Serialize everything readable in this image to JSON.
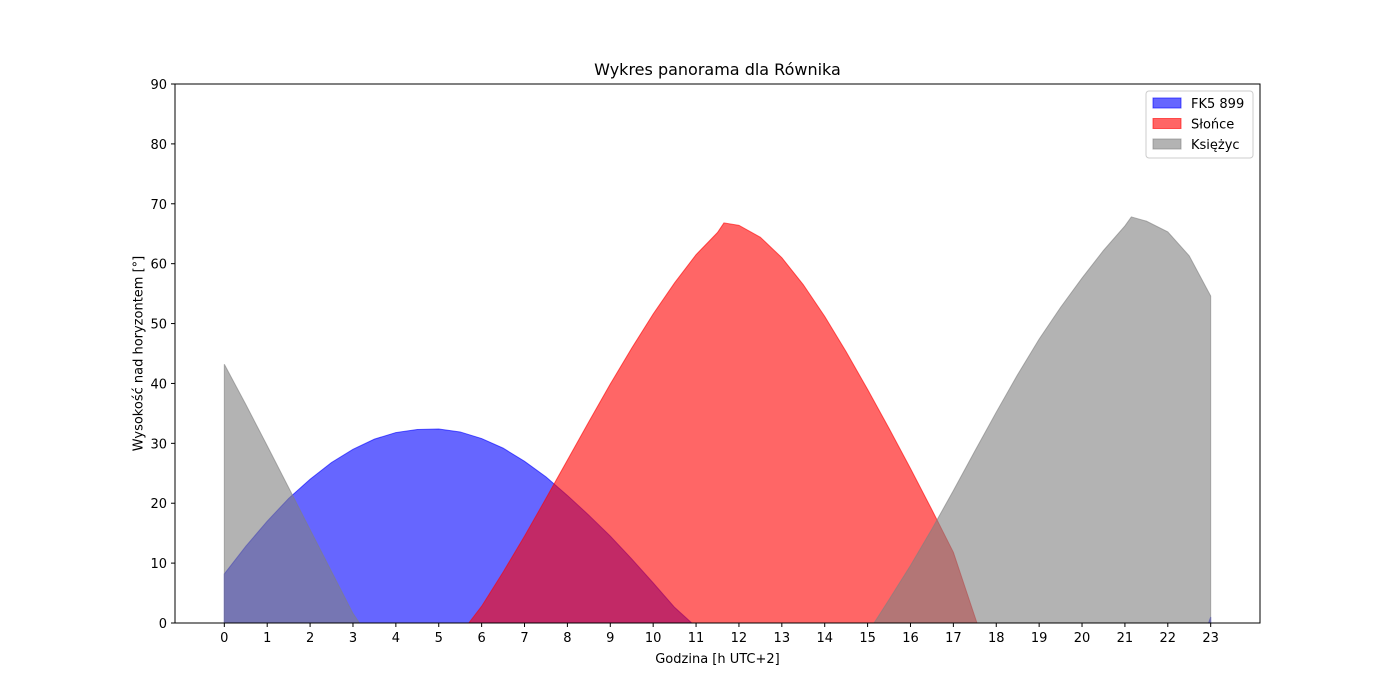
{
  "chart_data": {
    "type": "area",
    "title": "Wykres panorama dla Równika",
    "xlabel": "Godzina [h UTC+2]",
    "ylabel": "Wysokość nad horyzontem [°]",
    "xlim": [
      -1.15,
      24.15
    ],
    "ylim": [
      0,
      90
    ],
    "xticks": [
      0,
      1,
      2,
      3,
      4,
      5,
      6,
      7,
      8,
      9,
      10,
      11,
      12,
      13,
      14,
      15,
      16,
      17,
      18,
      19,
      20,
      21,
      22,
      23
    ],
    "yticks": [
      0,
      10,
      20,
      30,
      40,
      50,
      60,
      70,
      80,
      90
    ],
    "grid": false,
    "legend_position": "top-right",
    "series": [
      {
        "name": "FK5 899",
        "color": "#0000ff",
        "x": [
          0,
          0.5,
          1,
          1.5,
          2,
          2.5,
          3,
          3.5,
          4,
          4.5,
          5,
          5.5,
          6,
          6.5,
          7,
          7.5,
          8,
          8.5,
          9,
          9.5,
          10,
          10.5,
          10.9,
          22.95,
          23
        ],
        "y": [
          8.2,
          12.8,
          17.0,
          20.8,
          24.0,
          26.8,
          29.0,
          30.7,
          31.8,
          32.3,
          32.4,
          31.9,
          30.8,
          29.2,
          27.0,
          24.4,
          21.3,
          18.0,
          14.5,
          10.7,
          6.7,
          2.6,
          0,
          0,
          1.0
        ]
      },
      {
        "name": "Słońce",
        "color": "#ff0000",
        "x": [
          5.7,
          6,
          6.5,
          7,
          7.5,
          8,
          8.5,
          9,
          9.5,
          10,
          10.5,
          11,
          11.5,
          11.65,
          12,
          12.5,
          13,
          13.5,
          14,
          14.5,
          15,
          15.5,
          16,
          16.5,
          17,
          17.55
        ],
        "y": [
          0,
          2.8,
          8.5,
          14.5,
          20.8,
          27.2,
          33.6,
          39.9,
          45.9,
          51.6,
          56.8,
          61.5,
          65.2,
          66.8,
          66.4,
          64.4,
          61.0,
          56.5,
          51.2,
          45.3,
          39.0,
          32.5,
          25.8,
          18.9,
          11.8,
          0
        ]
      },
      {
        "name": "Księżyc",
        "color": "#808080",
        "x": [
          0,
          0.5,
          1,
          1.5,
          2,
          2.5,
          3,
          3.15,
          15.15,
          15.5,
          16,
          16.5,
          17,
          17.5,
          18,
          18.5,
          19,
          19.5,
          20,
          20.5,
          21,
          21.15,
          21.5,
          22,
          22.5,
          23
        ],
        "y": [
          43.2,
          36.5,
          29.6,
          22.6,
          15.6,
          8.6,
          1.6,
          0,
          0,
          3.9,
          9.6,
          15.7,
          22.1,
          28.7,
          35.2,
          41.5,
          47.4,
          52.7,
          57.6,
          62.2,
          66.3,
          67.8,
          67.1,
          65.3,
          61.3,
          54.6
        ]
      }
    ]
  }
}
